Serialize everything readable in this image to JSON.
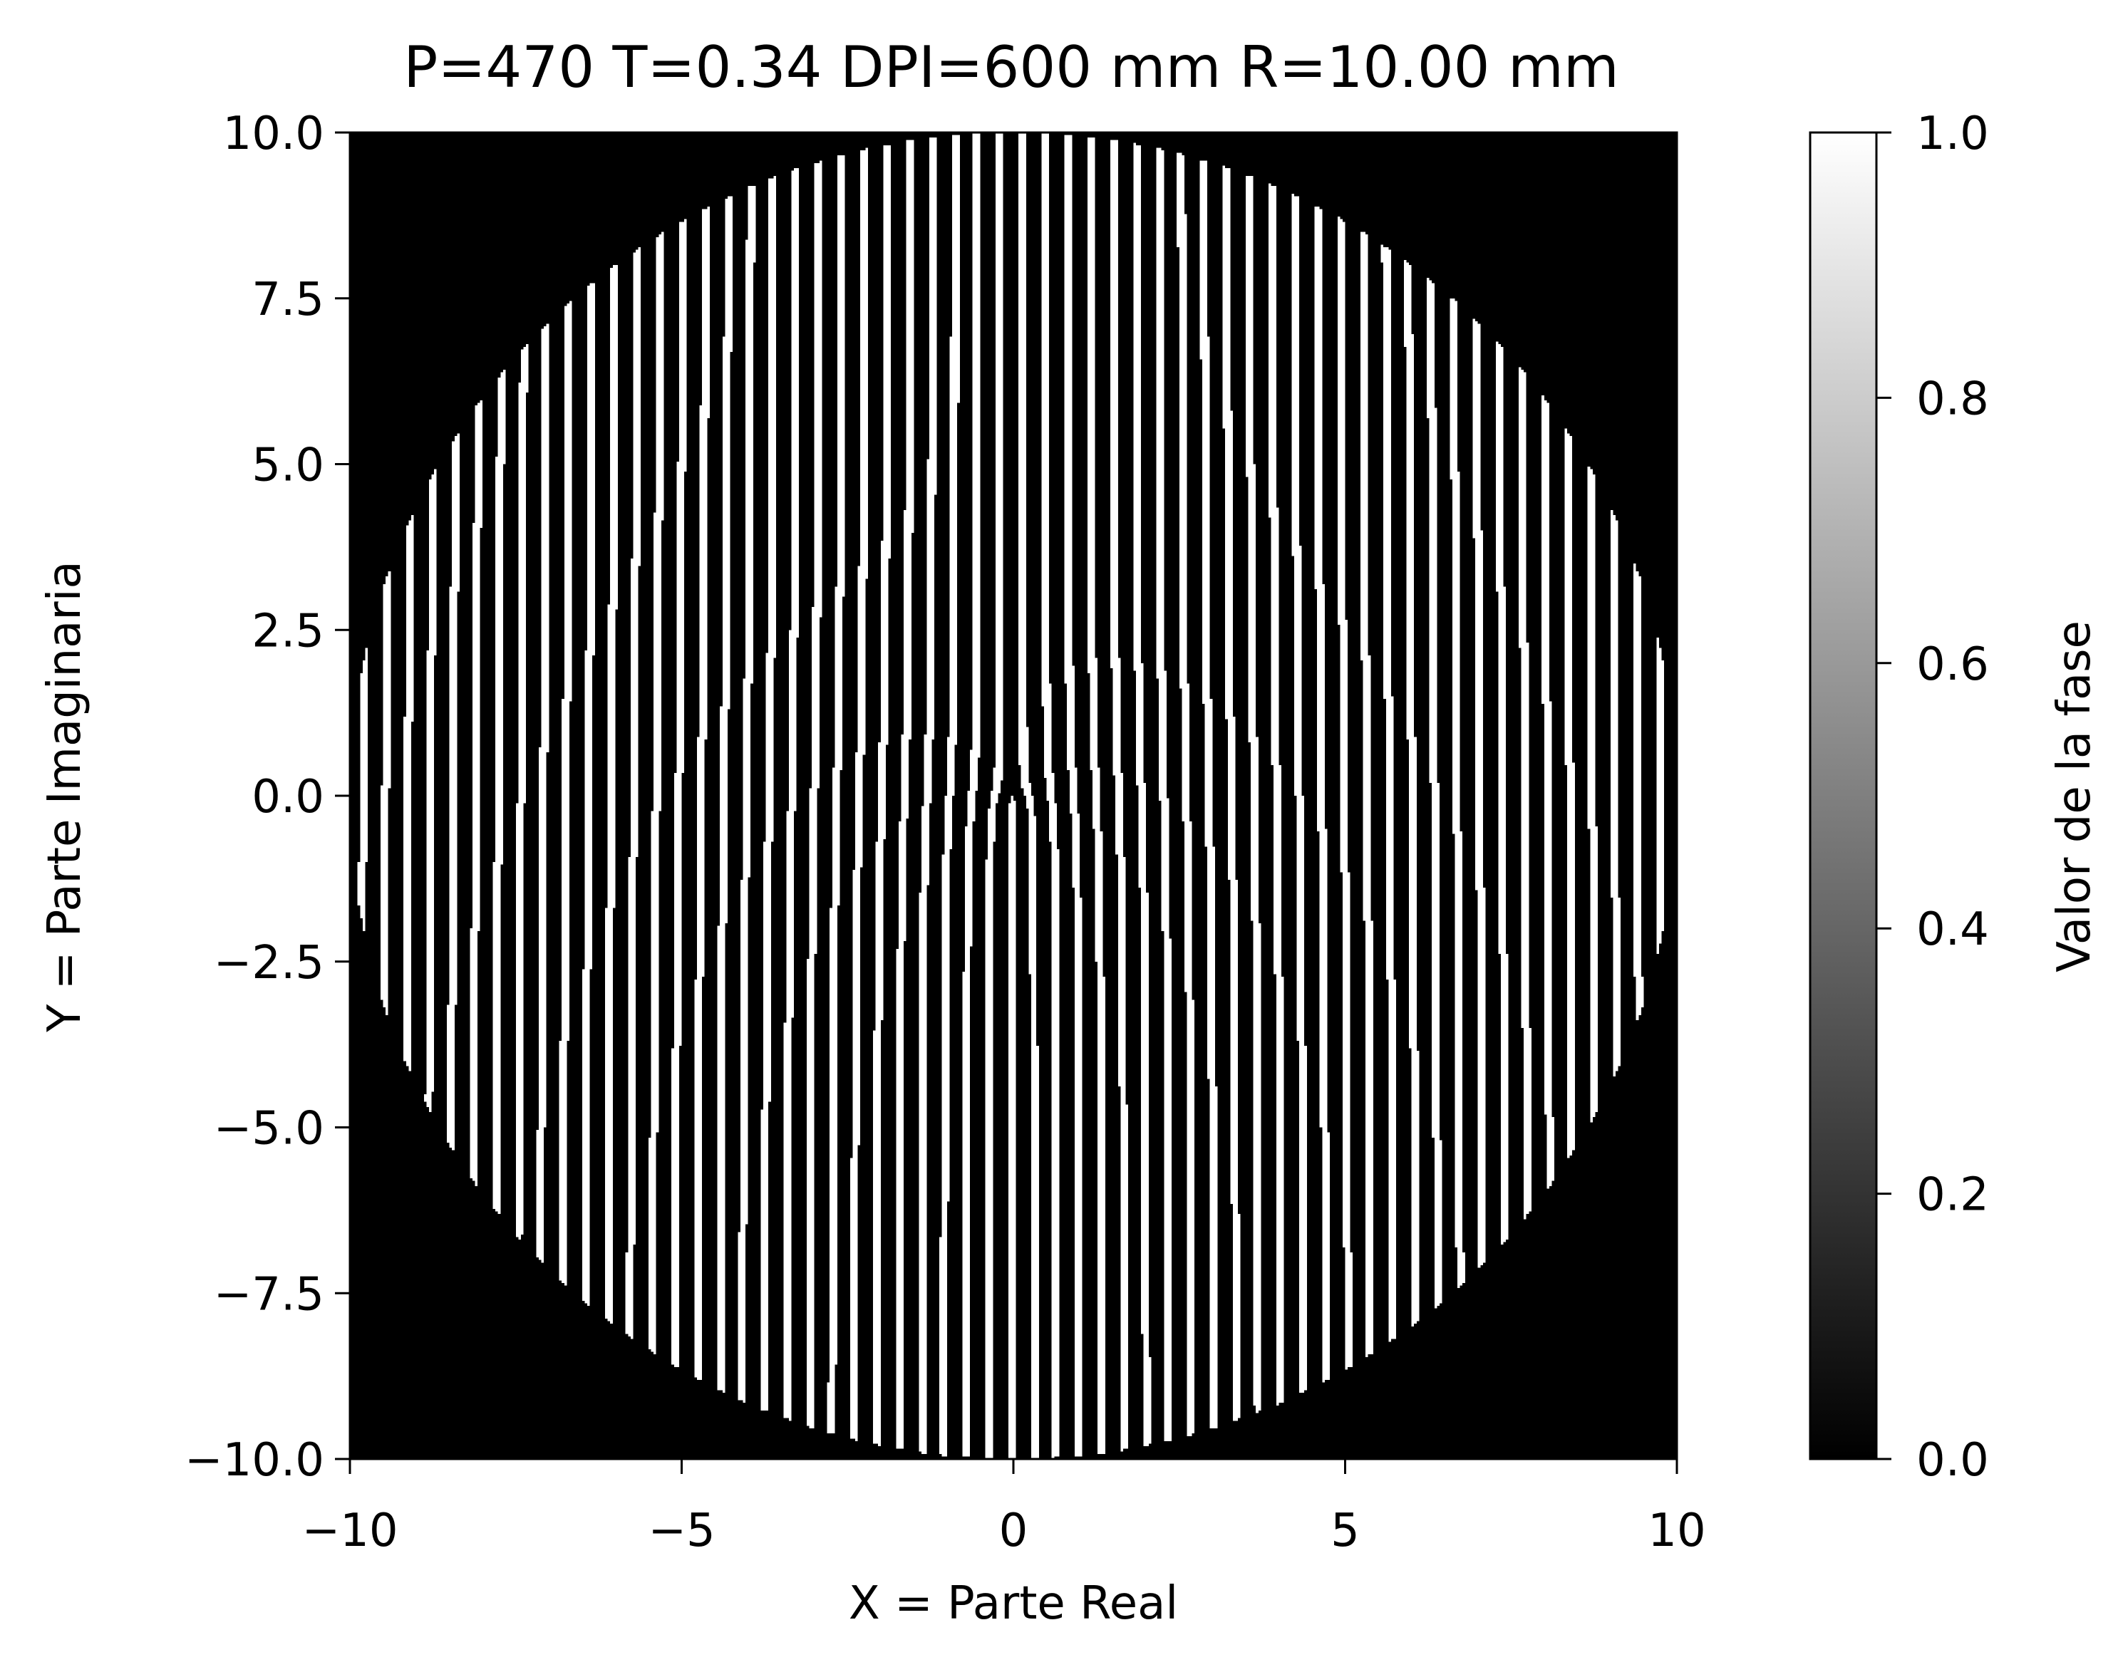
{
  "chart_data": {
    "type": "heatmap",
    "title": "P=470 T=0.34 DPI=600 mm R=10.00 mm",
    "xlabel": "X = Parte Real",
    "ylabel": "Y = Parte Imaginaria",
    "xlim": [
      -10,
      10
    ],
    "ylim": [
      -10,
      10
    ],
    "x_ticks": [
      -10,
      -5,
      0,
      5,
      10
    ],
    "x_tick_labels": [
      "−10",
      "−5",
      "0",
      "5",
      "10"
    ],
    "y_ticks": [
      -10,
      -7.5,
      -5,
      -2.5,
      0,
      2.5,
      5,
      7.5,
      10
    ],
    "y_tick_labels": [
      "−10.0",
      "−7.5",
      "−5.0",
      "−2.5",
      "0.0",
      "2.5",
      "5.0",
      "7.5",
      "10.0"
    ],
    "aperture_radius": 10.0,
    "colormap": "gray",
    "colormap_colors": [
      "#000000",
      "#ffffff"
    ],
    "pattern": {
      "description": "binary phase hologram: vertical fringes inside circular aperture, fork dislocation at origin",
      "fringe_period": 0.34,
      "duty_cycle": 0.34,
      "values": [
        0,
        1
      ]
    },
    "colorbar": {
      "label": "Valor de la fase",
      "range": [
        0.0,
        1.0
      ],
      "ticks": [
        0.0,
        0.2,
        0.4,
        0.6,
        0.8,
        1.0
      ],
      "tick_labels": [
        "0.0",
        "0.2",
        "0.4",
        "0.6",
        "0.8",
        "1.0"
      ]
    },
    "grid": false
  }
}
